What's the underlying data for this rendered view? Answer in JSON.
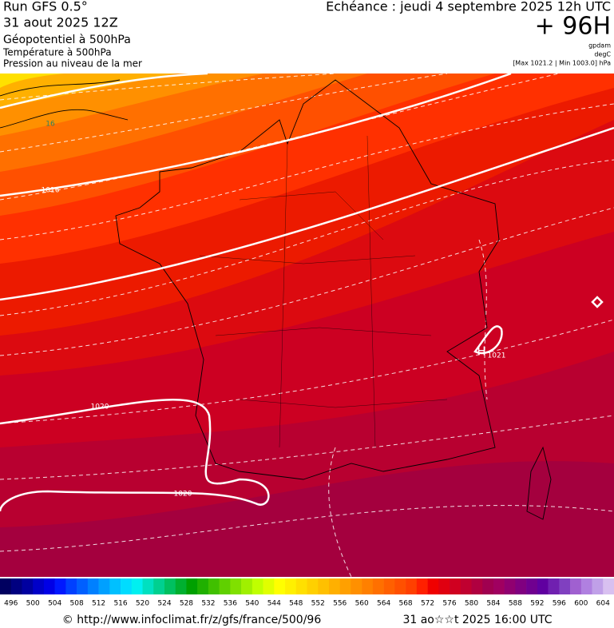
{
  "header": {
    "lines": [
      "Run GFS 0.5°",
      "31 aout 2025 12Z",
      "Géopotentiel à 500hPa",
      "Température à 500hPa",
      "Pression au niveau de la mer"
    ],
    "forecast": "Echéance : jeudi 4 septembre 2025 12h UTC",
    "lead": "+ 96H",
    "units": [
      "gpdam",
      "degC"
    ],
    "range": "[Max 1021.2 | Min 1003.0] hPa"
  },
  "map": {
    "labels": [
      "1016",
      "1020",
      "1020",
      "1021",
      "H",
      "16"
    ]
  },
  "scale": {
    "labels": [
      496,
      500,
      504,
      508,
      512,
      516,
      520,
      524,
      528,
      532,
      536,
      540,
      544,
      548,
      552,
      556,
      560,
      564,
      568,
      572,
      576,
      580,
      584,
      588,
      592,
      596,
      600,
      604
    ],
    "colors": [
      "#000060",
      "#000080",
      "#0000a0",
      "#0000c8",
      "#0000e6",
      "#0018ff",
      "#0040ff",
      "#0060ff",
      "#0080ff",
      "#00a0ff",
      "#00c0ff",
      "#00dcff",
      "#00f0f0",
      "#00e0c0",
      "#00d090",
      "#00c060",
      "#00b030",
      "#00a000",
      "#20b000",
      "#40c000",
      "#60d000",
      "#80e000",
      "#a0f000",
      "#c0ff00",
      "#e0ff00",
      "#ffff00",
      "#fff000",
      "#ffe000",
      "#ffd000",
      "#ffc000",
      "#ffb000",
      "#ffa000",
      "#ff9000",
      "#ff8000",
      "#ff7000",
      "#ff6000",
      "#ff5000",
      "#ff4000",
      "#ff2000",
      "#f00000",
      "#e00010",
      "#d00020",
      "#c00030",
      "#b00040",
      "#a00050",
      "#a00060",
      "#900070",
      "#800080",
      "#700090",
      "#6000a0",
      "#7020b0",
      "#8040c0",
      "#a060d0",
      "#b080e0",
      "#c0a0e8",
      "#d8c0f0"
    ]
  },
  "footer": {
    "url": "© http://www.infoclimat.fr/z/gfs/france/500/96",
    "timestamp": "31 ao☆☆t 2025 16:00 UTC"
  }
}
